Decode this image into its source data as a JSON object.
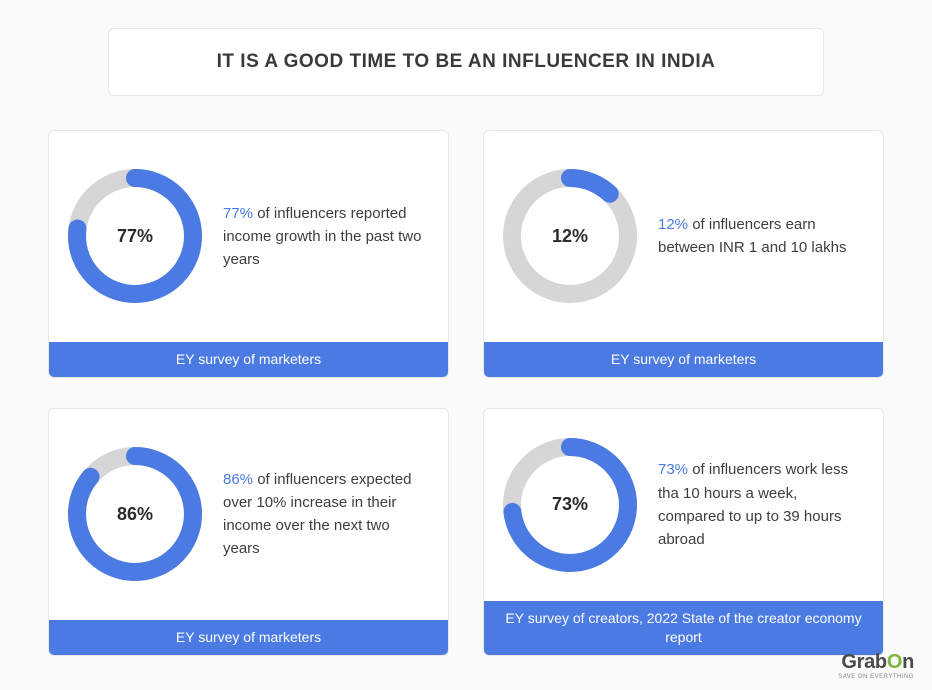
{
  "title": "IT IS A GOOD TIME TO BE AN INFLUENCER IN INDIA",
  "ring": {
    "stroke_width": 18,
    "radius": 58,
    "track_color": "#d6d6d6",
    "fill_color": "#4a7ae2"
  },
  "text_color": "#3d3d3d",
  "highlight_color": "#4a7ae2",
  "source_bar_bg": "#4a7ae2",
  "source_bar_text_color": "#ffffff",
  "page_bg": "#fafafa",
  "card_bg": "#ffffff",
  "cards": [
    {
      "percent": 77,
      "percent_label": "77%",
      "highlight": "77%",
      "rest": " of influencers reported income growth in the past two years",
      "source": "EY survey of marketers"
    },
    {
      "percent": 12,
      "percent_label": "12%",
      "highlight": "12%",
      "rest": " of influencers earn between INR 1 and 10 lakhs",
      "source": "EY survey of marketers"
    },
    {
      "percent": 86,
      "percent_label": "86%",
      "highlight": "86%",
      "rest": " of influencers expected over 10% increase in their income over the next two years",
      "source": "EY survey of marketers"
    },
    {
      "percent": 73,
      "percent_label": "73%",
      "highlight": "73%",
      "rest": " of influencers work less tha 10 hours a week, compared to up to 39 hours abroad",
      "source": "EY survey of creators, 2022 State of the creator economy report"
    }
  ],
  "branding": {
    "main_pre": "Grab",
    "main_accent": "O",
    "main_post": "n",
    "sub": "SAVE ON EVERYTHING"
  }
}
